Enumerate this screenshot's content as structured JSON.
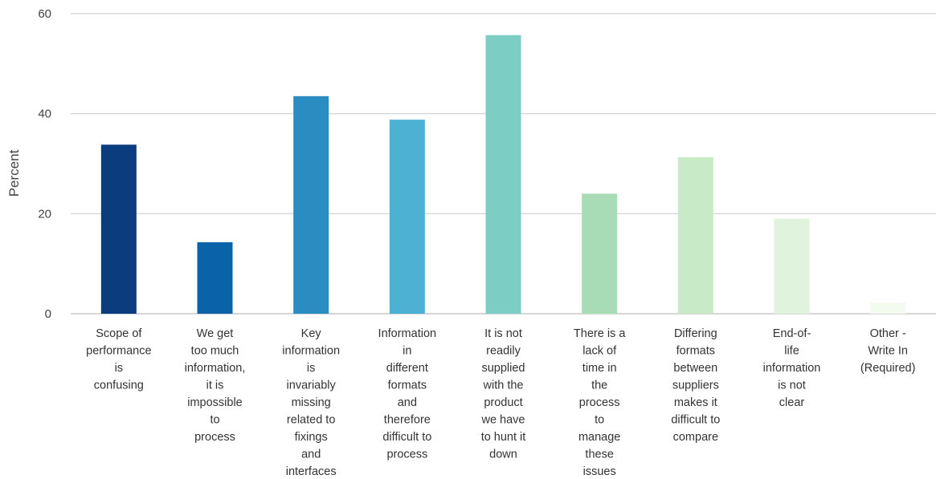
{
  "chart_data": {
    "type": "bar",
    "title": "",
    "xlabel": "",
    "ylabel": "Percent",
    "ylim": [
      0,
      60
    ],
    "yticks": [
      0,
      20,
      40,
      60
    ],
    "grid": true,
    "categories": [
      "Scope of performance is confusing",
      "We get too much information, it is impossible to process",
      "Key information is invariably missing related to fixings and interfaces",
      "Information in different formats and therefore difficult to process",
      "It is not readily supplied with the product we have to hunt it down",
      "There is a lack of time in the process to manage these issues",
      "Differing formats between suppliers makes it difficult to compare",
      "End-of-life information is not clear",
      "Other - Write In (Required)"
    ],
    "category_label_lines": [
      [
        "Scope of",
        "performance",
        "is",
        "confusing"
      ],
      [
        "We get",
        "too much",
        "information,",
        "it is",
        "impossible",
        "to",
        "process"
      ],
      [
        "Key",
        "information",
        "is",
        "invariably",
        "missing",
        "related to",
        "fixings",
        "and",
        "interfaces"
      ],
      [
        "Information",
        "in",
        "different",
        "formats",
        "and",
        "therefore",
        "difficult to",
        "process"
      ],
      [
        "It is not",
        "readily",
        "supplied",
        "with the",
        "product",
        "we have",
        "to hunt it",
        "down"
      ],
      [
        "There is a",
        "lack of",
        "time in",
        "the",
        "process",
        "to",
        "manage",
        "these",
        "issues"
      ],
      [
        "Differing",
        "formats",
        "between",
        "suppliers",
        "makes it",
        "difficult to",
        "compare"
      ],
      [
        "End-of-",
        "life",
        "information",
        "is not",
        "clear"
      ],
      [
        "Other -",
        "Write In",
        "(Required)"
      ]
    ],
    "values": [
      33.8,
      14.3,
      43.5,
      38.8,
      55.7,
      24.0,
      31.3,
      19.0,
      2.2
    ],
    "colors": [
      "#0b3c7d",
      "#0a62a8",
      "#2a8cc0",
      "#4db1d4",
      "#7ccdc4",
      "#a8dcb6",
      "#c9eac7",
      "#e0f3dc",
      "#f3faef"
    ]
  }
}
